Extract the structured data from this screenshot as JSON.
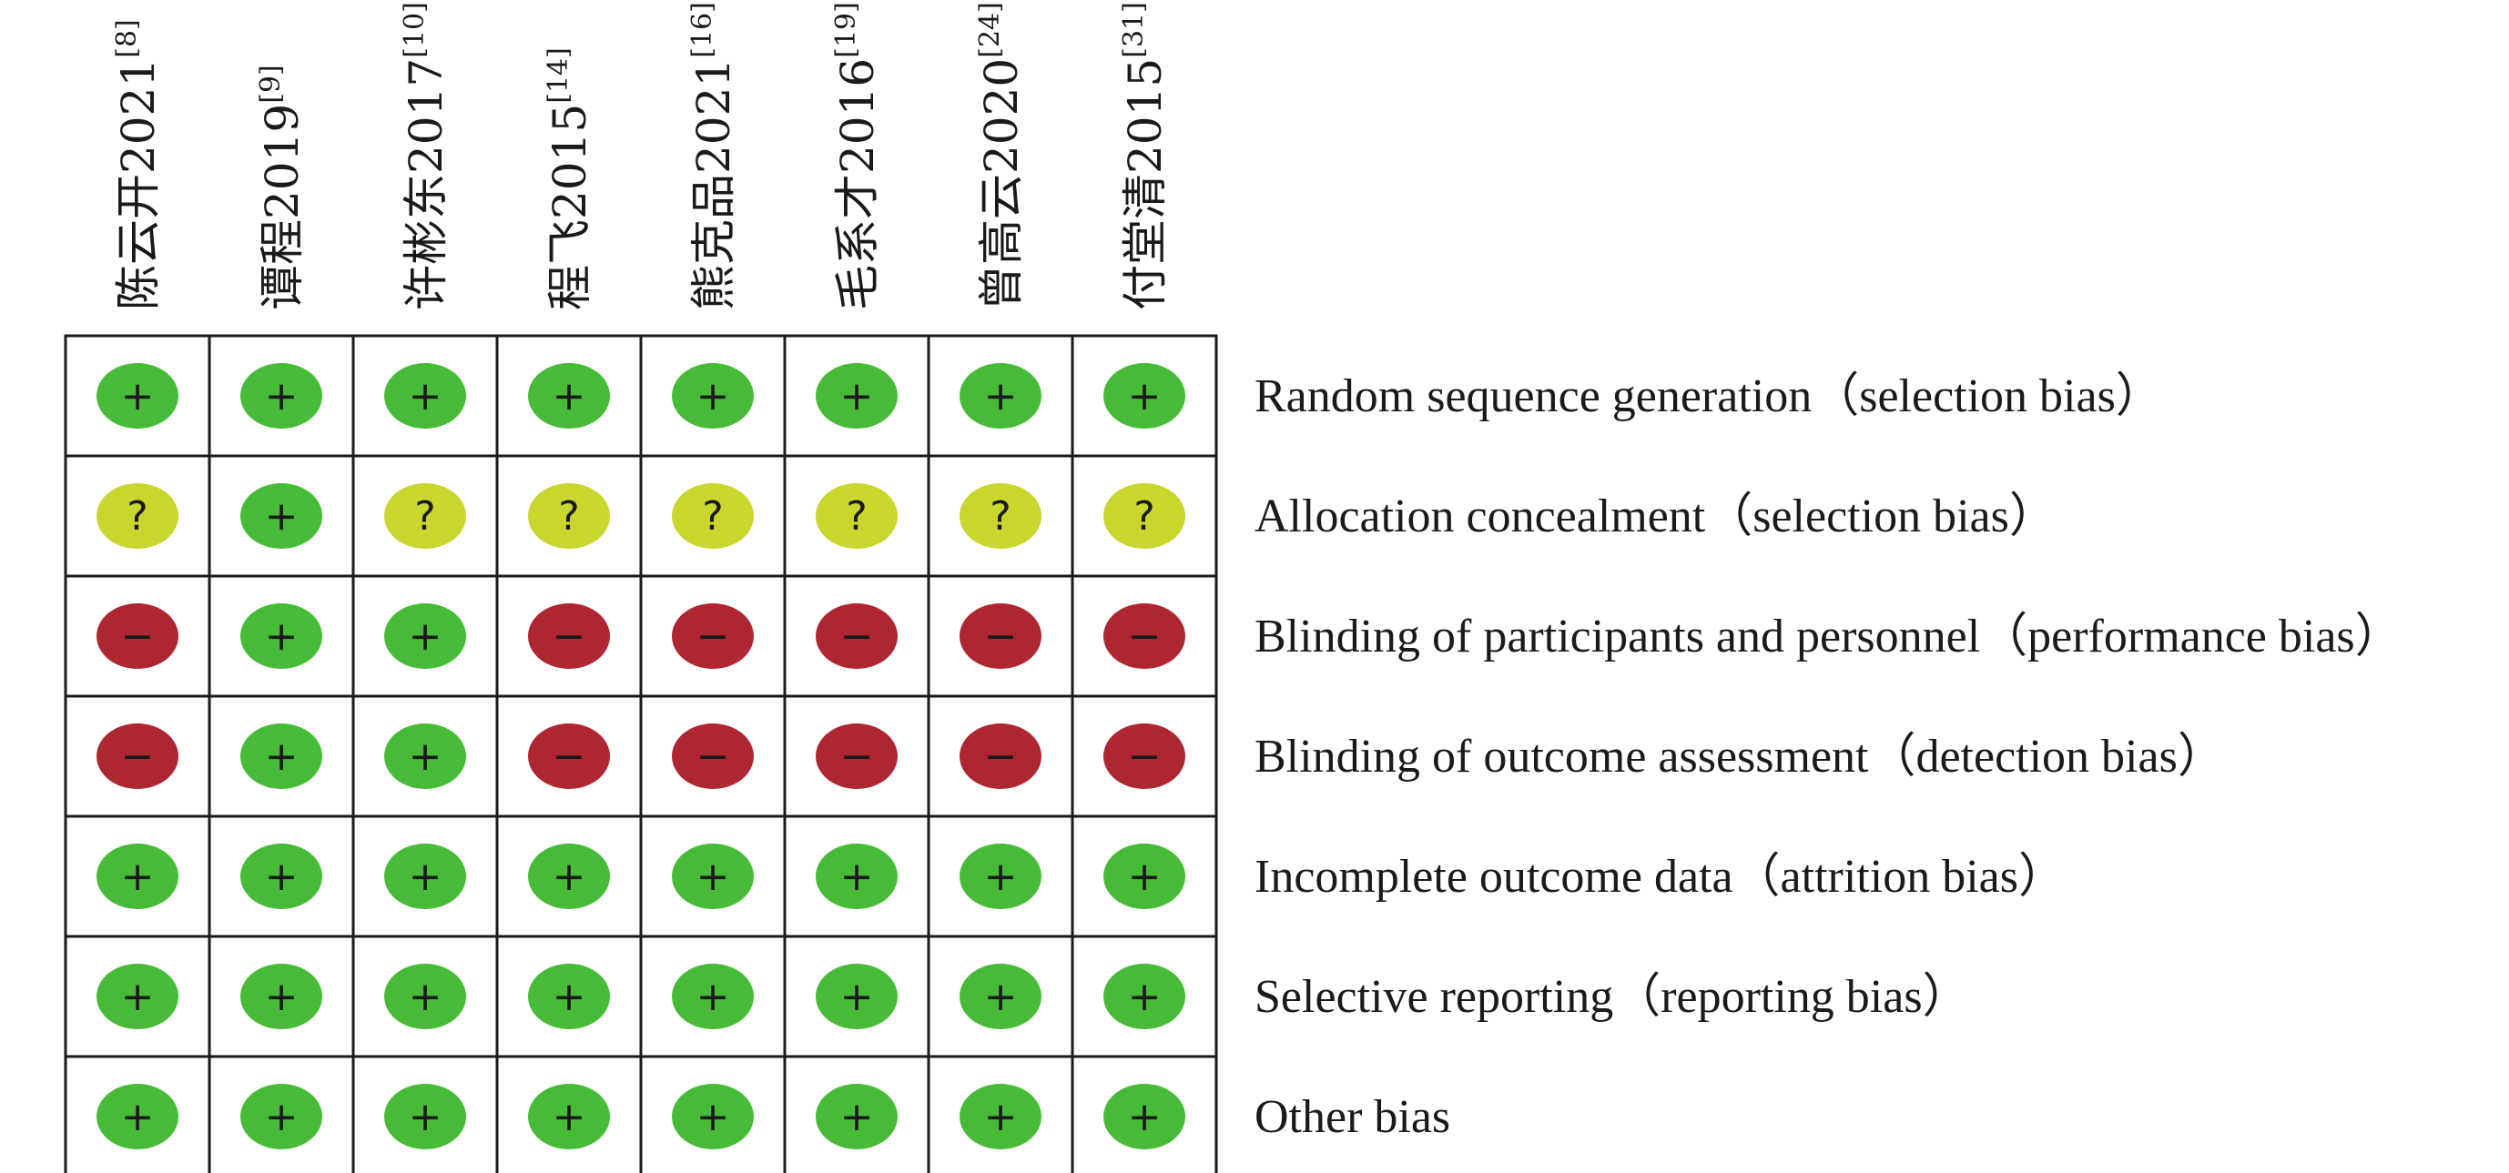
{
  "chart_data": {
    "type": "table",
    "studies": [
      {
        "label": "陈云开2021",
        "ref": "[8]"
      },
      {
        "label": "谭程2019",
        "ref": "[9]"
      },
      {
        "label": "许彬东2017",
        "ref": "[10]"
      },
      {
        "label": "程飞2015",
        "ref": "[14]"
      },
      {
        "label": "熊克品2021",
        "ref": "[16]"
      },
      {
        "label": "毛系才2016",
        "ref": "[19]"
      },
      {
        "label": "曾高云2020",
        "ref": "[24]"
      },
      {
        "label": "付堂清2015",
        "ref": "[31]"
      }
    ],
    "domains": [
      "Random sequence generation（selection bias）",
      "Allocation concealment（selection bias）",
      "Blinding of participants and personnel（performance bias）",
      "Blinding of outcome assessment（detection bias）",
      "Incomplete outcome data（attrition bias）",
      "Selective reporting（reporting bias）",
      "Other bias"
    ],
    "judgements": [
      [
        "low",
        "low",
        "low",
        "low",
        "low",
        "low",
        "low",
        "low"
      ],
      [
        "unclear",
        "low",
        "unclear",
        "unclear",
        "unclear",
        "unclear",
        "unclear",
        "unclear"
      ],
      [
        "high",
        "low",
        "low",
        "high",
        "high",
        "high",
        "high",
        "high"
      ],
      [
        "high",
        "low",
        "low",
        "high",
        "high",
        "high",
        "high",
        "high"
      ],
      [
        "low",
        "low",
        "low",
        "low",
        "low",
        "low",
        "low",
        "low"
      ],
      [
        "low",
        "low",
        "low",
        "low",
        "low",
        "low",
        "low",
        "low"
      ],
      [
        "low",
        "low",
        "low",
        "low",
        "low",
        "low",
        "low",
        "low"
      ]
    ],
    "symbols": {
      "low": "+",
      "unclear": "?",
      "high": "−"
    },
    "colors": {
      "low": "#47bb37",
      "unclear": "#cad52e",
      "high": "#ae2631"
    }
  }
}
